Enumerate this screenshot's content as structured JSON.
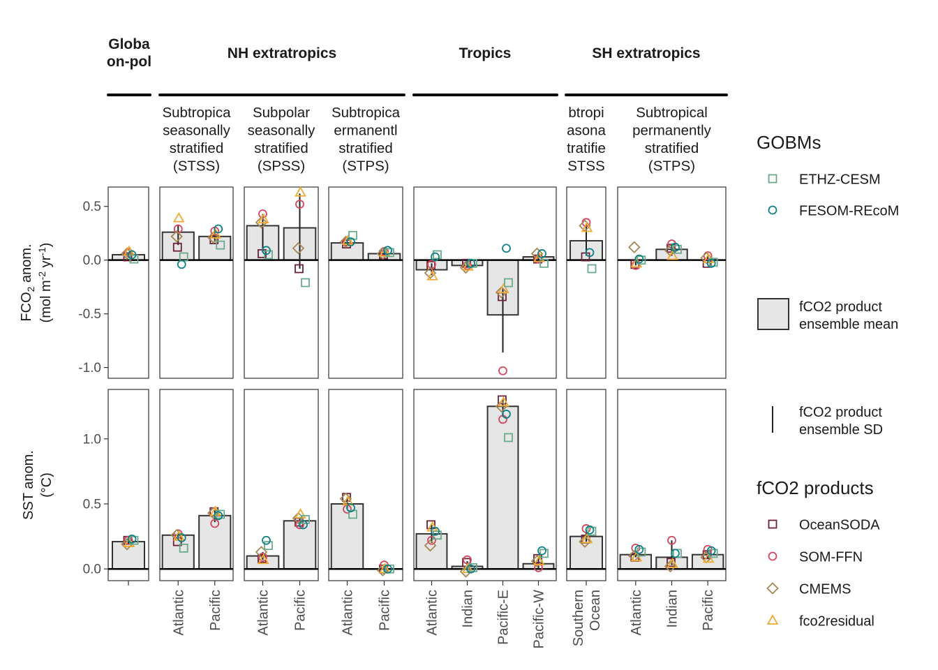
{
  "chart_data": {
    "type": "bar",
    "region_headers": [
      {
        "id": "global",
        "label": "Global non-polar",
        "label_lines": [
          "Globa",
          "on-pol"
        ]
      },
      {
        "id": "nh",
        "label": "NH extratropics",
        "label_lines": [
          "NH extratropics"
        ]
      },
      {
        "id": "trop",
        "label": "Tropics",
        "label_lines": [
          "Tropics"
        ]
      },
      {
        "id": "sh",
        "label": "SH extratropics",
        "label_lines": [
          "SH extratropics"
        ]
      }
    ],
    "biome_headers": [
      {
        "id": "nh_stss",
        "lines": [
          "Subtropica",
          "seasonally",
          "stratified",
          "(STSS)"
        ]
      },
      {
        "id": "nh_spss",
        "lines": [
          "Subpolar",
          "seasonally",
          "stratified",
          "(SPSS)"
        ]
      },
      {
        "id": "nh_stps",
        "lines": [
          "Subtropica",
          "ermanentl",
          "stratified",
          "(STPS)"
        ]
      },
      {
        "id": "sh_stss",
        "lines": [
          "btropi",
          "asona",
          "tratifie",
          "STSS"
        ]
      },
      {
        "id": "sh_stps",
        "lines": [
          "Subtropical",
          "permanently",
          "stratified",
          "(STPS)"
        ]
      }
    ],
    "panels": [
      {
        "id": "global",
        "categories": [
          ""
        ]
      },
      {
        "id": "nh_stss",
        "categories": [
          "Atlantic",
          "Pacific"
        ]
      },
      {
        "id": "nh_spss",
        "categories": [
          "Atlantic",
          "Pacific"
        ]
      },
      {
        "id": "nh_stps",
        "categories": [
          "Atlantic",
          "Pacific"
        ]
      },
      {
        "id": "tropics",
        "categories": [
          "Atlantic",
          "Indian",
          "Pacific-E",
          "Pacific-W"
        ]
      },
      {
        "id": "sh_stss",
        "categories": [
          [
            "Southern",
            "Ocean"
          ]
        ]
      },
      {
        "id": "sh_stps",
        "categories": [
          "Atlantic",
          "Indian",
          "Pacific"
        ]
      }
    ],
    "rows": [
      {
        "id": "fco2",
        "ylabel_lines": [
          "FCO2 anom.",
          "(mol m-2 yr-1)"
        ],
        "ylim": [
          -1.1,
          0.68
        ],
        "yticks": [
          -1.0,
          -0.5,
          0.0,
          0.5
        ],
        "ytick_labels": [
          "-1.0",
          "-0.5",
          "0.0",
          "0.5"
        ],
        "panels": [
          {
            "mean": [
              0.05
            ],
            "sd_lo": [
              0.02
            ],
            "sd_hi": [
              0.07
            ],
            "ETHZ-CESM": [
              0.01
            ],
            "FESOM-REcoM": [
              0.05
            ],
            "OceanSODA": [
              0.03
            ],
            "SOM-FFN": [
              0.07
            ],
            "CMEMS": [
              0.06
            ],
            "fco2residual": [
              0.08
            ]
          },
          {
            "mean": [
              0.26,
              0.22
            ],
            "sd_lo": [
              0.14,
              0.17
            ],
            "sd_hi": [
              0.32,
              0.27
            ],
            "ETHZ-CESM": [
              0.03,
              0.14
            ],
            "FESOM-REcoM": [
              -0.04,
              0.29
            ],
            "OceanSODA": [
              0.12,
              0.19
            ],
            "SOM-FFN": [
              0.29,
              0.27
            ],
            "CMEMS": [
              0.22,
              0.21
            ],
            "fco2residual": [
              0.39,
              0.24
            ]
          },
          {
            "mean": [
              0.32,
              0.3
            ],
            "sd_lo": [
              0.07,
              -0.08
            ],
            "sd_hi": [
              0.43,
              0.62
            ],
            "ETHZ-CESM": [
              0.05,
              -0.21
            ],
            "FESOM-REcoM": [
              0.09,
              null
            ],
            "OceanSODA": [
              0.06,
              -0.08
            ],
            "SOM-FFN": [
              0.43,
              0.52
            ],
            "CMEMS": [
              0.35,
              0.11
            ],
            "fco2residual": [
              0.38,
              0.63
            ]
          },
          {
            "mean": [
              0.16,
              0.06
            ],
            "sd_lo": [
              0.13,
              0.04
            ],
            "sd_hi": [
              0.19,
              0.09
            ],
            "ETHZ-CESM": [
              0.23,
              0.07
            ],
            "FESOM-REcoM": [
              0.17,
              0.09
            ],
            "OceanSODA": [
              0.15,
              0.05
            ],
            "SOM-FFN": [
              0.17,
              0.08
            ],
            "CMEMS": [
              0.17,
              0.06
            ],
            "fco2residual": [
              0.18,
              0.07
            ]
          },
          {
            "mean": [
              -0.09,
              -0.05,
              -0.51,
              0.03
            ],
            "sd_lo": [
              -0.14,
              -0.07,
              -0.86,
              0.0
            ],
            "sd_hi": [
              -0.03,
              -0.03,
              -0.27,
              0.05
            ],
            "ETHZ-CESM": [
              0.05,
              -0.03,
              -0.21,
              -0.03
            ],
            "FESOM-REcoM": [
              0.03,
              -0.03,
              0.11,
              0.06
            ],
            "OceanSODA": [
              -0.05,
              -0.03,
              -0.34,
              0.01
            ],
            "SOM-FFN": [
              -0.04,
              -0.05,
              -1.03,
              0.01
            ],
            "CMEMS": [
              -0.12,
              -0.07,
              -0.3,
              0.06
            ],
            "fco2residual": [
              -0.15,
              -0.06,
              -0.27,
              0.02
            ]
          },
          {
            "mean": [
              0.18
            ],
            "sd_lo": [
              0.04
            ],
            "sd_hi": [
              0.34
            ],
            "ETHZ-CESM": [
              -0.08
            ],
            "FESOM-REcoM": [
              0.07
            ],
            "OceanSODA": [
              0.03
            ],
            "SOM-FFN": [
              0.35
            ],
            "CMEMS": [
              0.32
            ],
            "fco2residual": [
              0.3
            ]
          },
          {
            "mean": [
              0.0,
              0.1,
              0.0
            ],
            "sd_lo": [
              -0.05,
              0.04,
              -0.03
            ],
            "sd_hi": [
              0.02,
              0.14,
              0.04
            ],
            "ETHZ-CESM": [
              0.0,
              0.1,
              -0.02
            ],
            "FESOM-REcoM": [
              0.01,
              0.12,
              -0.03
            ],
            "OceanSODA": [
              -0.04,
              0.11,
              -0.03
            ],
            "SOM-FFN": [
              -0.05,
              0.15,
              0.04
            ],
            "CMEMS": [
              0.12,
              0.09,
              0.02
            ],
            "fco2residual": [
              -0.03,
              0.04,
              0.01
            ]
          }
        ]
      },
      {
        "id": "sst",
        "ylabel_lines": [
          "SST anom.",
          "(°C)"
        ],
        "ylim": [
          -0.09,
          1.38
        ],
        "yticks": [
          0.0,
          0.5,
          1.0
        ],
        "ytick_labels": [
          "0.0",
          "0.5",
          "1.0"
        ],
        "panels": [
          {
            "mean": [
              0.21
            ],
            "sd_lo": [
              0.19
            ],
            "sd_hi": [
              0.23
            ],
            "ETHZ-CESM": [
              0.22
            ],
            "FESOM-REcoM": [
              0.23
            ],
            "OceanSODA": [
              0.22
            ],
            "SOM-FFN": [
              0.22
            ],
            "CMEMS": [
              0.19
            ],
            "fco2residual": [
              0.2
            ]
          },
          {
            "mean": [
              0.26,
              0.41
            ],
            "sd_lo": [
              0.22,
              0.36
            ],
            "sd_hi": [
              0.28,
              0.45
            ],
            "ETHZ-CESM": [
              0.16,
              0.42
            ],
            "FESOM-REcoM": [
              0.24,
              0.41
            ],
            "OceanSODA": [
              0.21,
              0.44
            ],
            "SOM-FFN": [
              0.27,
              0.35
            ],
            "CMEMS": [
              0.26,
              0.43
            ],
            "fco2residual": [
              0.25,
              0.44
            ]
          },
          {
            "mean": [
              0.1,
              0.37
            ],
            "sd_lo": [
              0.07,
              0.34
            ],
            "sd_hi": [
              0.13,
              0.4
            ],
            "ETHZ-CESM": [
              0.18,
              0.38
            ],
            "FESOM-REcoM": [
              0.22,
              0.34
            ],
            "OceanSODA": [
              0.08,
              0.36
            ],
            "SOM-FFN": [
              0.09,
              0.34
            ],
            "CMEMS": [
              0.13,
              0.39
            ],
            "fco2residual": [
              0.07,
              0.42
            ]
          },
          {
            "mean": [
              0.5,
              0.0
            ],
            "sd_lo": [
              0.46,
              -0.02
            ],
            "sd_hi": [
              0.55,
              0.02
            ],
            "ETHZ-CESM": [
              0.42,
              0.0
            ],
            "FESOM-REcoM": [
              0.47,
              0.0
            ],
            "OceanSODA": [
              0.55,
              0.0
            ],
            "SOM-FFN": [
              0.46,
              0.03
            ],
            "CMEMS": [
              0.54,
              -0.01
            ],
            "fco2residual": [
              0.52,
              0.0
            ]
          },
          {
            "mean": [
              0.27,
              0.02,
              1.25,
              0.04
            ],
            "sd_lo": [
              0.2,
              0.0,
              1.17,
              0.0
            ],
            "sd_hi": [
              0.34,
              0.06,
              1.31,
              0.08
            ],
            "ETHZ-CESM": [
              0.26,
              0.01,
              1.01,
              0.12
            ],
            "FESOM-REcoM": [
              0.29,
              0.0,
              1.19,
              0.14
            ],
            "OceanSODA": [
              0.34,
              0.05,
              1.3,
              0.08
            ],
            "SOM-FFN": [
              0.22,
              0.07,
              1.15,
              0.01
            ],
            "CMEMS": [
              0.18,
              -0.02,
              1.25,
              0.06
            ],
            "fco2residual": [
              0.32,
              0.0,
              1.28,
              0.06
            ]
          },
          {
            "mean": [
              0.25
            ],
            "sd_lo": [
              0.21
            ],
            "sd_hi": [
              0.3
            ],
            "ETHZ-CESM": [
              0.29
            ],
            "FESOM-REcoM": [
              0.3
            ],
            "OceanSODA": [
              0.23
            ],
            "SOM-FFN": [
              0.31
            ],
            "CMEMS": [
              0.21
            ],
            "fco2residual": [
              0.23
            ]
          },
          {
            "mean": [
              0.11,
              0.09,
              0.11
            ],
            "sd_lo": [
              0.09,
              0.03,
              0.08
            ],
            "sd_hi": [
              0.14,
              0.22,
              0.14
            ],
            "ETHZ-CESM": [
              0.13,
              0.12,
              0.12
            ],
            "FESOM-REcoM": [
              0.15,
              0.12,
              0.14
            ],
            "OceanSODA": [
              0.09,
              0.05,
              0.11
            ],
            "SOM-FFN": [
              0.16,
              0.22,
              0.15
            ],
            "CMEMS": [
              0.1,
              0.02,
              0.09
            ],
            "fco2residual": [
              0.09,
              0.04,
              0.08
            ]
          }
        ]
      }
    ],
    "legend": {
      "gobms_title": "GOBMs",
      "gobms": [
        {
          "name": "ETHZ-CESM",
          "shape": "square",
          "color": "#6aaa8c"
        },
        {
          "name": "FESOM-REcoM",
          "shape": "circle",
          "color": "#0e8186"
        }
      ],
      "bar_label_lines": [
        "fCO2 product",
        "ensemble mean"
      ],
      "sd_label_lines": [
        "fCO2 product",
        "ensemble SD"
      ],
      "products_title": "fCO2 products",
      "products": [
        {
          "name": "OceanSODA",
          "shape": "square",
          "color": "#6b2139"
        },
        {
          "name": "SOM-FFN",
          "shape": "circle",
          "color": "#d6455d"
        },
        {
          "name": "CMEMS",
          "shape": "diamond",
          "color": "#a58756"
        },
        {
          "name": "fco2residual",
          "shape": "triangle",
          "color": "#eeaa33"
        }
      ]
    },
    "colors": {
      "bar_fill": "#e6e6e6",
      "bar_stroke": "#333333",
      "frame": "#333333"
    }
  }
}
